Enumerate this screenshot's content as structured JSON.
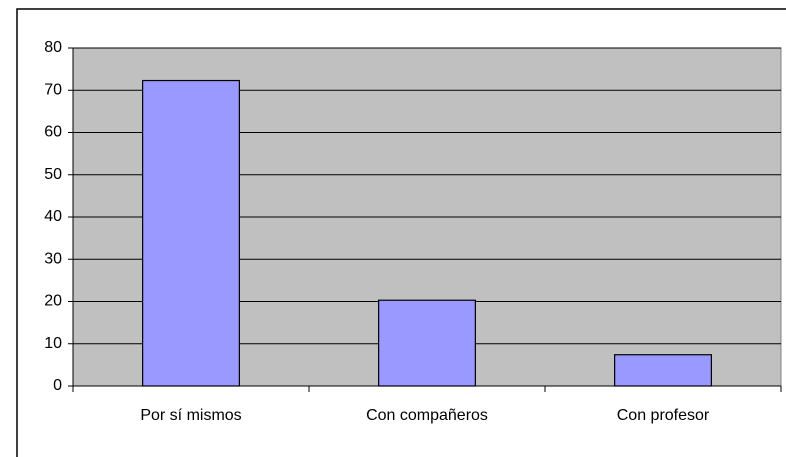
{
  "chart_data": {
    "type": "bar",
    "categories": [
      "Por sí mismos",
      "Con compañeros",
      "Con profesor"
    ],
    "values": [
      72.3,
      20.3,
      7.4
    ],
    "color": "#9999ff",
    "ylim": [
      0,
      80
    ],
    "yticks": [
      0,
      10,
      20,
      30,
      40,
      50,
      60,
      70,
      80
    ],
    "grid": true
  }
}
